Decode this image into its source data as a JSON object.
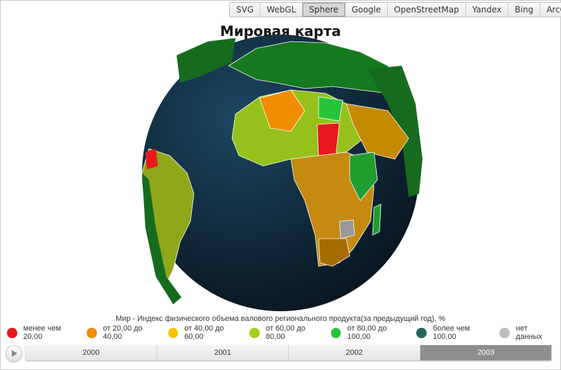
{
  "tabs": [
    {
      "label": "SVG"
    },
    {
      "label": "WebGL"
    },
    {
      "label": "Sphere",
      "active": true
    },
    {
      "label": "Google"
    },
    {
      "label": "OpenStreetMap"
    },
    {
      "label": "Yandex"
    },
    {
      "label": "Bing"
    },
    {
      "label": "ArcGis"
    }
  ],
  "title": "Мировая карта",
  "legend": {
    "title": "Мир - Индекс физического объема валового регионального продукта(за предыдущий год), %",
    "items": [
      {
        "label": "менее чем 20,00",
        "color": "#e8191e"
      },
      {
        "label": "от 20,00 до 40,00",
        "color": "#f08c00"
      },
      {
        "label": "от 40,00 до 60,00",
        "color": "#f8c400"
      },
      {
        "label": "от 60,00 до 80,00",
        "color": "#a5cf17"
      },
      {
        "label": "от 80,00 до 100,00",
        "color": "#27c43a"
      },
      {
        "label": "более чем 100,00",
        "color": "#26665f"
      },
      {
        "label": "нет данных",
        "color": "#bdbdbd"
      }
    ]
  },
  "timeline": {
    "years": [
      {
        "label": "2000"
      },
      {
        "label": "2001"
      },
      {
        "label": "2002"
      },
      {
        "label": "2003",
        "active": true
      }
    ]
  },
  "globe": {
    "ocean_color": "#0f2a40"
  }
}
